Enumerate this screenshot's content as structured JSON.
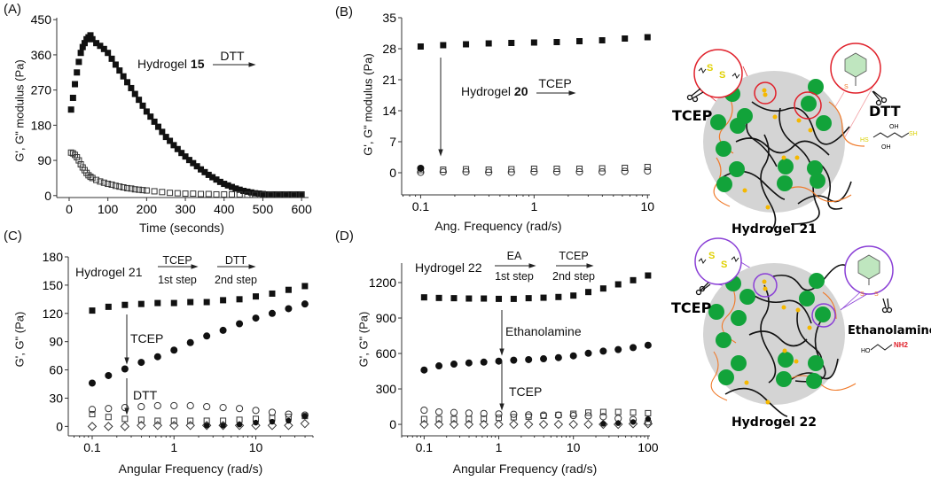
{
  "panels": {
    "A": {
      "label": "(A)",
      "ylabel": "G', G\" modulus (Pa)",
      "xlabel": "Time (seconds)",
      "ann": {
        "hydrogel": "Hydrogel ",
        "number": "15",
        "reagent": "DTT"
      }
    },
    "B": {
      "label": "(B)",
      "ylabel": "G', G\" modulus (Pa)",
      "xlabel": "Ang. Frequency (rad/s)",
      "ann": {
        "hydrogel": "Hydrogel ",
        "number": "20",
        "reagent": "TCEP"
      }
    },
    "C": {
      "label": "(C)",
      "ylabel": "G', G\" (Pa)",
      "xlabel": "Angular Frequency (rad/s)",
      "ann": {
        "hydrogel": "Hydrogel 21",
        "step1_reagent": "TCEP",
        "step1": "1st step",
        "step2_reagent": "DTT",
        "step2": "2nd step",
        "arrow1": "TCEP",
        "arrow2": "DTT"
      }
    },
    "D": {
      "label": "(D)",
      "ylabel": "G', G\" (Pa)",
      "xlabel": "Angular Frequency (rad/s)",
      "ann": {
        "hydrogel": "Hydrogel 22",
        "step1_reagent": "EA",
        "step1": "1st step",
        "step2_reagent": "TCEP",
        "step2": "2nd step",
        "arrow1": "Ethanolamine",
        "arrow2": "TCEP"
      }
    }
  },
  "schematics": {
    "top": {
      "title": "Hydrogel 21",
      "left_reagent": "TCEP",
      "right_reagent": "DTT",
      "sulfur": "S",
      "sh": "SH",
      "hs": "HS",
      "oh": "OH",
      "ring_color": "#e0202a"
    },
    "bottom": {
      "title": "Hydrogel 22",
      "left_reagent": "TCEP",
      "right_reagent": "Ethanolamine",
      "sulfur": "S",
      "ho": "HO",
      "nh2": "NH2",
      "ring_color": "#8a3fd6"
    },
    "colors": {
      "gel": "#d4d4d4",
      "node": "#12a33a",
      "linker": "#f07a2a",
      "endgroup": "#f5b800",
      "chain": "#111111"
    }
  },
  "chart_data": [
    {
      "id": "A",
      "type": "scatter",
      "xscale": "linear",
      "xlabel": "Time (seconds)",
      "ylabel": "G', G\" modulus (Pa)",
      "xlim": [
        -32,
        618
      ],
      "ylim": [
        -5,
        455
      ],
      "xticks": [
        0,
        100,
        200,
        300,
        400,
        500,
        600
      ],
      "yticks": [
        0,
        90,
        180,
        270,
        360,
        450
      ],
      "grid": false,
      "series": [
        {
          "marker": "square-filled",
          "x": [
            5,
            10,
            15,
            20,
            25,
            30,
            35,
            40,
            45,
            50,
            55,
            60,
            70,
            80,
            90,
            100,
            110,
            120,
            130,
            140,
            150,
            160,
            170,
            180,
            190,
            200,
            210,
            220,
            230,
            240,
            250,
            260,
            270,
            280,
            290,
            300,
            310,
            320,
            330,
            340,
            350,
            360,
            370,
            380,
            390,
            400,
            410,
            420,
            430,
            440,
            450,
            460,
            470,
            480,
            490,
            500,
            510,
            520,
            530,
            540,
            550,
            560,
            570,
            580,
            590,
            600
          ],
          "y": [
            220,
            250,
            285,
            315,
            342,
            365,
            380,
            390,
            400,
            405,
            410,
            400,
            390,
            383,
            375,
            365,
            350,
            335,
            320,
            305,
            290,
            275,
            260,
            245,
            230,
            215,
            202,
            189,
            176,
            163,
            150,
            140,
            129,
            119,
            109,
            100,
            91,
            83,
            75,
            67,
            60,
            53,
            47,
            41,
            35,
            30,
            26,
            22,
            18,
            15,
            12,
            10,
            8,
            6,
            5,
            4,
            3,
            3,
            3,
            3,
            3,
            3,
            3,
            3,
            3,
            3
          ]
        },
        {
          "marker": "square-open",
          "x": [
            5,
            10,
            15,
            20,
            25,
            30,
            35,
            40,
            45,
            50,
            55,
            60,
            70,
            80,
            90,
            100,
            110,
            120,
            130,
            140,
            150,
            160,
            170,
            180,
            190,
            200,
            220,
            240,
            260,
            280,
            300,
            320,
            340,
            360,
            380,
            400,
            420,
            440,
            460,
            480,
            500,
            520,
            540,
            560,
            580,
            600
          ],
          "y": [
            110,
            108,
            104,
            98,
            90,
            80,
            72,
            65,
            58,
            52,
            48,
            45,
            40,
            36,
            33,
            30,
            28,
            25,
            23,
            21,
            19,
            18,
            16,
            15,
            14,
            13,
            11,
            9,
            7,
            6,
            5,
            5,
            4,
            4,
            3,
            3,
            3,
            3,
            2,
            2,
            2,
            2,
            2,
            2,
            2,
            2
          ]
        }
      ]
    },
    {
      "id": "B",
      "type": "scatter",
      "xscale": "log",
      "xlabel": "Ang. Frequency (rad/s)",
      "ylabel": "G', G\" modulus (Pa)",
      "xlim": [
        0.068,
        10.5
      ],
      "ylim": [
        -5,
        35
      ],
      "xticks": [
        0.1,
        1,
        10
      ],
      "xticklabels": [
        "0.1",
        "1",
        "10"
      ],
      "yticks": [
        0,
        7,
        14,
        21,
        28,
        35
      ],
      "grid": false,
      "series": [
        {
          "marker": "square-filled",
          "x": [
            0.1,
            0.158,
            0.251,
            0.398,
            0.631,
            1,
            1.585,
            2.512,
            3.981,
            6.31,
            10
          ],
          "y": [
            28.5,
            28.8,
            29.0,
            29.2,
            29.3,
            29.4,
            29.5,
            29.7,
            29.9,
            30.3,
            30.6
          ]
        },
        {
          "marker": "square-open",
          "x": [
            0.1,
            0.158,
            0.251,
            0.398,
            0.631,
            1,
            1.585,
            2.512,
            3.981,
            6.31,
            10
          ],
          "y": [
            0.6,
            0.7,
            0.8,
            0.7,
            0.8,
            0.9,
            0.9,
            0.9,
            1.0,
            1.1,
            1.3
          ]
        },
        {
          "marker": "circle-open",
          "x": [
            0.1,
            0.158,
            0.251,
            0.398,
            0.631,
            1,
            1.585,
            2.512,
            3.981,
            6.31,
            10
          ],
          "y": [
            0.1,
            0.2,
            0.2,
            0.1,
            0.1,
            0.2,
            0.2,
            0.2,
            0.2,
            0.3,
            0.4
          ]
        },
        {
          "marker": "circle-filled",
          "x": [
            0.1
          ],
          "y": [
            1.0
          ]
        }
      ]
    },
    {
      "id": "C",
      "type": "scatter",
      "xscale": "log",
      "xlabel": "Angular Frequency (rad/s)",
      "ylabel": "G', G\" (Pa)",
      "xlim": [
        0.051,
        50
      ],
      "ylim": [
        -10,
        180
      ],
      "xticks": [
        0.1,
        1,
        10
      ],
      "xticklabels": [
        "0.1",
        "1",
        "10"
      ],
      "yticks": [
        0,
        30,
        60,
        90,
        120,
        150,
        180
      ],
      "grid": false,
      "series": [
        {
          "marker": "square-filled",
          "x": [
            0.1,
            0.158,
            0.251,
            0.398,
            0.631,
            1,
            1.585,
            2.512,
            3.981,
            6.31,
            10,
            15.85,
            25.12,
            39.81
          ],
          "y": [
            123,
            127,
            129,
            130,
            131,
            131,
            132,
            132,
            134,
            135,
            138,
            141,
            145,
            149
          ]
        },
        {
          "marker": "circle-filled",
          "x": [
            0.1,
            0.158,
            0.251,
            0.398,
            0.631,
            1,
            1.585,
            2.512,
            3.981,
            6.31,
            10,
            15.85,
            25.12,
            39.81
          ],
          "y": [
            46,
            54,
            61,
            68,
            74,
            81,
            89,
            96,
            102,
            109,
            115,
            120,
            125,
            130
          ]
        },
        {
          "marker": "circle-open",
          "x": [
            0.1,
            0.158,
            0.251,
            0.398,
            0.631,
            1,
            1.585,
            2.512,
            3.981,
            6.31,
            10,
            15.85,
            25.12,
            39.81
          ],
          "y": [
            18,
            19,
            20,
            21,
            22,
            22,
            22,
            21,
            20,
            19,
            17,
            15,
            13,
            12
          ]
        },
        {
          "marker": "square-open",
          "x": [
            0.1,
            0.158,
            0.251,
            0.398,
            0.631,
            1,
            1.585,
            2.512,
            3.981,
            6.31,
            10,
            15.85,
            25.12,
            39.81
          ],
          "y": [
            13,
            10,
            8,
            7,
            6,
            6,
            6,
            6,
            6,
            7,
            8,
            9,
            10,
            11
          ]
        },
        {
          "marker": "diamond-open",
          "x": [
            0.1,
            0.158,
            0.251,
            0.398,
            0.631,
            1,
            1.585,
            2.512,
            3.981,
            6.31,
            10,
            15.85,
            25.12,
            39.81
          ],
          "y": [
            0,
            0,
            0,
            1,
            1,
            1,
            1,
            1,
            1,
            1,
            1,
            1,
            1,
            3
          ]
        },
        {
          "marker": "circle-filled-small",
          "x": [
            2.512,
            3.981,
            6.31,
            10,
            15.85,
            25.12,
            39.81
          ],
          "y": [
            1,
            1,
            2,
            4,
            5,
            6,
            11
          ]
        }
      ]
    },
    {
      "id": "D",
      "type": "scatter",
      "xscale": "log",
      "xlabel": "Angular Frequency (rad/s)",
      "ylabel": "G', G\" (Pa)",
      "xlim": [
        0.05,
        106
      ],
      "ylim": [
        -97,
        1365
      ],
      "xticks": [
        0.1,
        1,
        10,
        100
      ],
      "xticklabels": [
        "0.1",
        "1",
        "10",
        "100"
      ],
      "yticks": [
        0,
        300,
        600,
        900,
        1200
      ],
      "grid": false,
      "series": [
        {
          "marker": "square-filled",
          "x": [
            0.1,
            0.158,
            0.251,
            0.398,
            0.631,
            1,
            1.585,
            2.512,
            3.981,
            6.31,
            10,
            15.85,
            25.12,
            39.81,
            63.1,
            100
          ],
          "y": [
            1075,
            1070,
            1068,
            1065,
            1065,
            1062,
            1062,
            1068,
            1072,
            1078,
            1090,
            1120,
            1150,
            1185,
            1220,
            1260
          ]
        },
        {
          "marker": "circle-filled",
          "x": [
            0.1,
            0.158,
            0.251,
            0.398,
            0.631,
            1,
            1.585,
            2.512,
            3.981,
            6.31,
            10,
            15.85,
            25.12,
            39.81,
            63.1,
            100
          ],
          "y": [
            460,
            495,
            510,
            520,
            527,
            535,
            543,
            548,
            555,
            565,
            580,
            602,
            620,
            633,
            650,
            670
          ]
        },
        {
          "marker": "circle-open",
          "x": [
            0.1,
            0.158,
            0.251,
            0.398,
            0.631,
            1,
            1.585,
            2.512,
            3.981,
            6.31,
            10,
            15.85,
            25.12,
            39.81,
            63.1,
            100
          ],
          "y": [
            120,
            105,
            100,
            95,
            92,
            88,
            85,
            80,
            78,
            78,
            75,
            72,
            65,
            50,
            40,
            20
          ]
        },
        {
          "marker": "square-open",
          "x": [
            0.1,
            0.158,
            0.251,
            0.398,
            0.631,
            1,
            1.585,
            2.512,
            3.981,
            6.31,
            10,
            15.85,
            25.12,
            39.81,
            63.1,
            100
          ],
          "y": [
            45,
            45,
            45,
            45,
            48,
            55,
            60,
            65,
            72,
            80,
            90,
            100,
            105,
            105,
            100,
            95
          ]
        },
        {
          "marker": "diamond-open",
          "x": [
            0.1,
            0.158,
            0.251,
            0.398,
            0.631,
            1,
            1.585,
            2.512,
            3.981,
            6.31,
            10,
            15.85,
            25.12,
            39.81,
            63.1,
            100
          ],
          "y": [
            0,
            0,
            0,
            0,
            0,
            0,
            0,
            0,
            0,
            0,
            0,
            0,
            0,
            0,
            5,
            5
          ]
        },
        {
          "marker": "circle-filled-small",
          "x": [
            25.12,
            39.81,
            63.1,
            100
          ],
          "y": [
            5,
            10,
            20,
            45
          ]
        }
      ]
    }
  ]
}
